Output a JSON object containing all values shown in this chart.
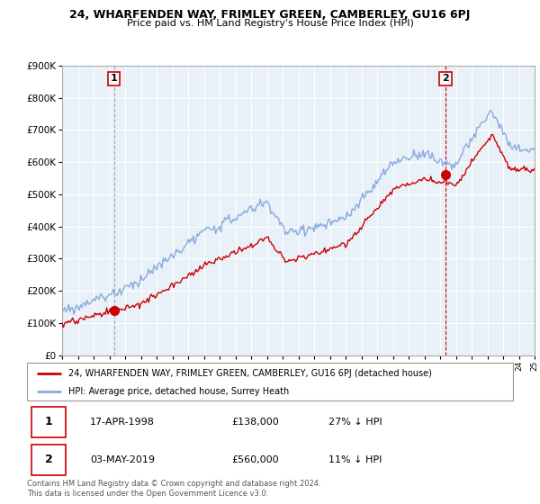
{
  "title": "24, WHARFENDEN WAY, FRIMLEY GREEN, CAMBERLEY, GU16 6PJ",
  "subtitle": "Price paid vs. HM Land Registry's House Price Index (HPI)",
  "legend_line1": "24, WHARFENDEN WAY, FRIMLEY GREEN, CAMBERLEY, GU16 6PJ (detached house)",
  "legend_line2": "HPI: Average price, detached house, Surrey Heath",
  "sale1_label": "1",
  "sale1_date": "17-APR-1998",
  "sale1_price": "£138,000",
  "sale1_hpi": "27% ↓ HPI",
  "sale2_label": "2",
  "sale2_date": "03-MAY-2019",
  "sale2_price": "£560,000",
  "sale2_hpi": "11% ↓ HPI",
  "footnote": "Contains HM Land Registry data © Crown copyright and database right 2024.\nThis data is licensed under the Open Government Licence v3.0.",
  "sale_color": "#cc0000",
  "hpi_color": "#88aadd",
  "sale1_vline_color": "#888888",
  "sale2_vline_color": "#cc0000",
  "bg_color": "#e8f0f8",
  "ylim_min": 0,
  "ylim_max": 900000,
  "x_start_year": 1995,
  "x_end_year": 2025,
  "sale1_year": 1998.29,
  "sale1_value": 138000,
  "sale2_year": 2019.34,
  "sale2_value": 560000
}
